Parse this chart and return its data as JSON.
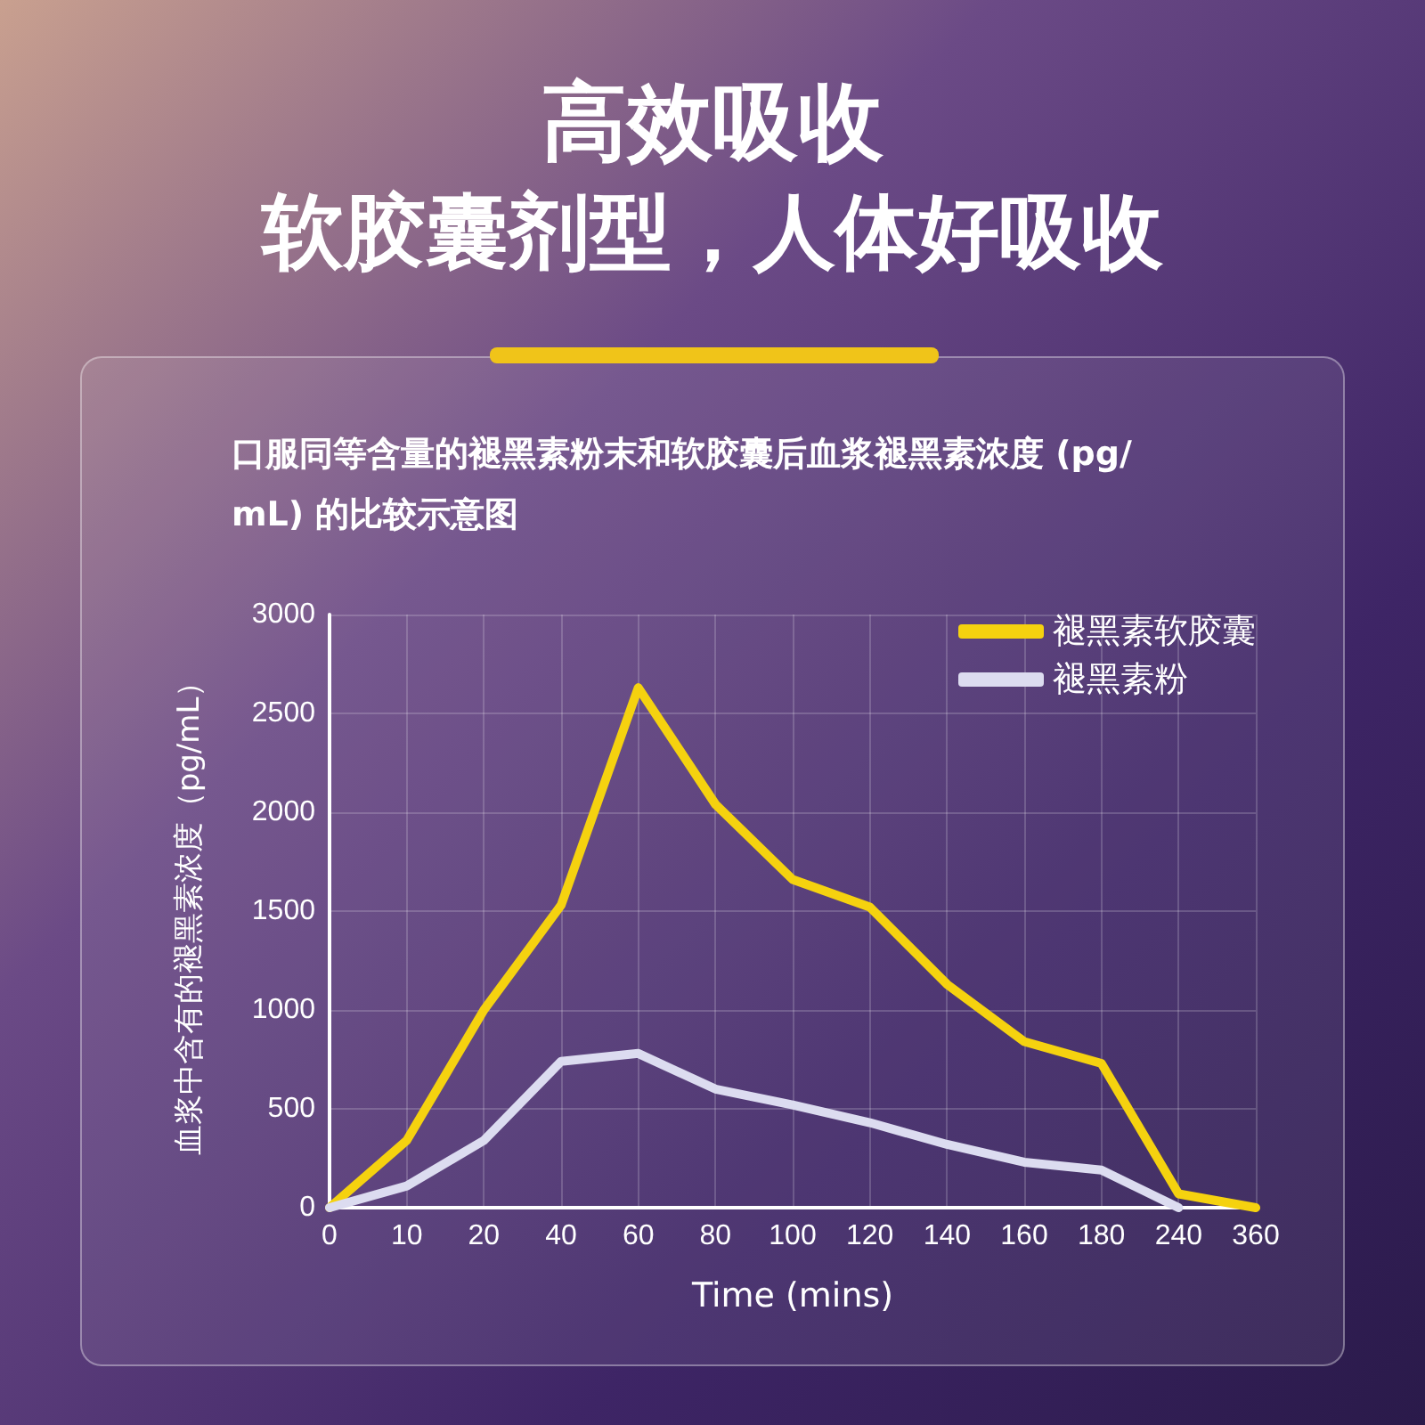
{
  "chart_data": {
    "type": "line",
    "title": "高效吸收",
    "subtitle": "软胶囊剂型，人体好吸收",
    "annotations": [
      "口服同等含量的褪黑素粉末和软胶囊后血浆褪黑素浓度 (pg/mL) 的比较示意图"
    ],
    "xlabel": "Time (mins)",
    "ylabel": "血浆中含有的褪黑素浓度（pg/mL）",
    "categories": [
      "0",
      "10",
      "20",
      "40",
      "60",
      "80",
      "100",
      "120",
      "140",
      "160",
      "180",
      "240",
      "360"
    ],
    "series": [
      {
        "name": "褪黑素软胶囊",
        "color": "#f5d20f",
        "values": [
          0,
          340,
          1000,
          1530,
          2630,
          2040,
          1660,
          1520,
          1130,
          840,
          730,
          70,
          0
        ]
      },
      {
        "name": "褪黑素粉",
        "color": "#dcdcf0",
        "values": [
          0,
          110,
          340,
          740,
          780,
          600,
          520,
          430,
          320,
          230,
          190,
          0,
          null
        ]
      }
    ],
    "ylim": [
      0,
      3000
    ],
    "yticks": [
      0,
      500,
      1000,
      1500,
      2000,
      2500,
      3000
    ],
    "grid": true,
    "legend": "top right",
    "marker": "none",
    "line_style": "solid"
  }
}
